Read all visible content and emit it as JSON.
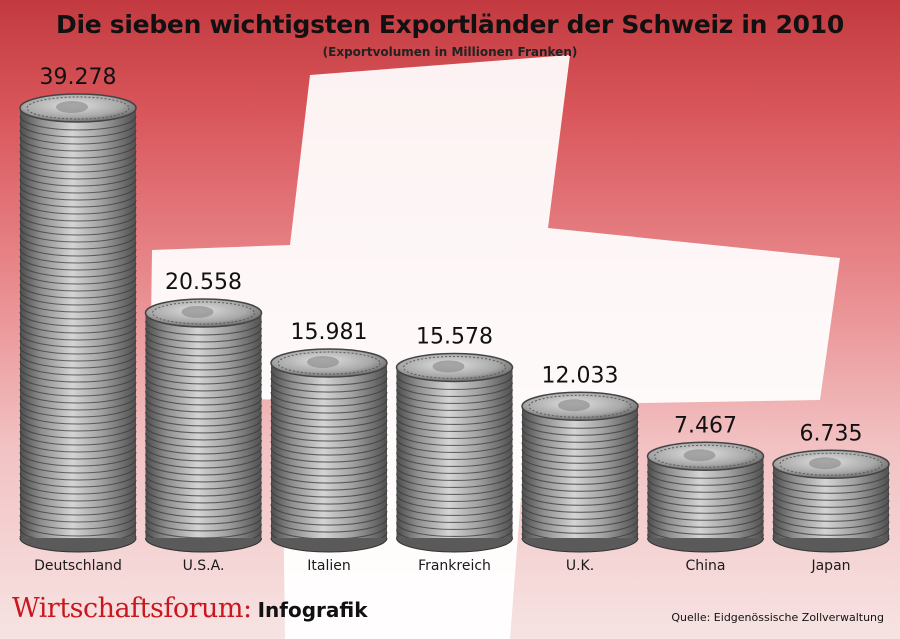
{
  "chart_data": {
    "type": "bar",
    "title": "Die sieben wichtigsten Exportländer der Schweiz in 2010",
    "subtitle": "(Exportvolumen in Millionen Franken)",
    "categories": [
      "Deutschland",
      "U.S.A.",
      "Italien",
      "Frankreich",
      "U.K.",
      "China",
      "Japan"
    ],
    "values": [
      39278,
      20558,
      15981,
      15578,
      12033,
      7467,
      6735
    ],
    "value_labels": [
      "39.278",
      "20.558",
      "15.981",
      "15.578",
      "12.033",
      "7.467",
      "6.735"
    ],
    "mark_style": "coin stacks",
    "grid": false,
    "legend": "none"
  },
  "branding": {
    "name": "Wirtschaftsforum:",
    "tag": "Infografik"
  },
  "source": "Quelle: Eidgenössische Zollverwaltung",
  "colors": {
    "flag_red": "#d23a3f",
    "brand_red": "#c8171e",
    "coin": "#8a8a8a"
  }
}
